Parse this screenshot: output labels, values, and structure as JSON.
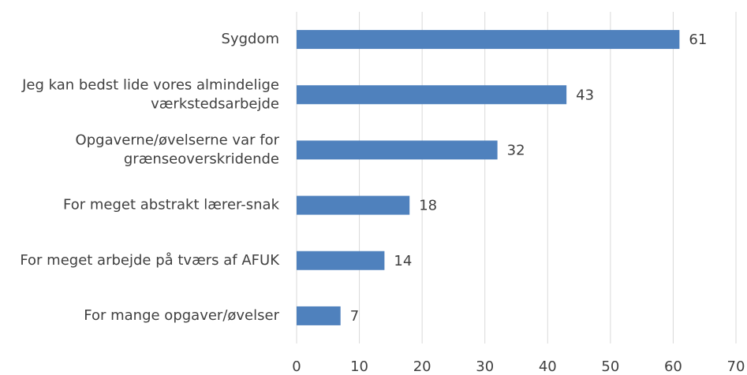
{
  "chart_data": {
    "type": "bar",
    "orientation": "horizontal",
    "categories": [
      "Sygdom",
      "Jeg kan bedst lide vores almindelige\nværkstedsarbejde",
      "Opgaverne/øvelserne var for\ngrænseoverskridende",
      "For meget abstrakt lærer-snak",
      "For meget arbejde på tværs af AFUK",
      "For mange opgaver/øvelser"
    ],
    "values": [
      61,
      43,
      32,
      18,
      14,
      7
    ],
    "color": "#4f81bd",
    "xlim": [
      0,
      70
    ],
    "xticks": [
      0,
      10,
      20,
      30,
      40,
      50,
      60,
      70
    ],
    "grid": true
  }
}
